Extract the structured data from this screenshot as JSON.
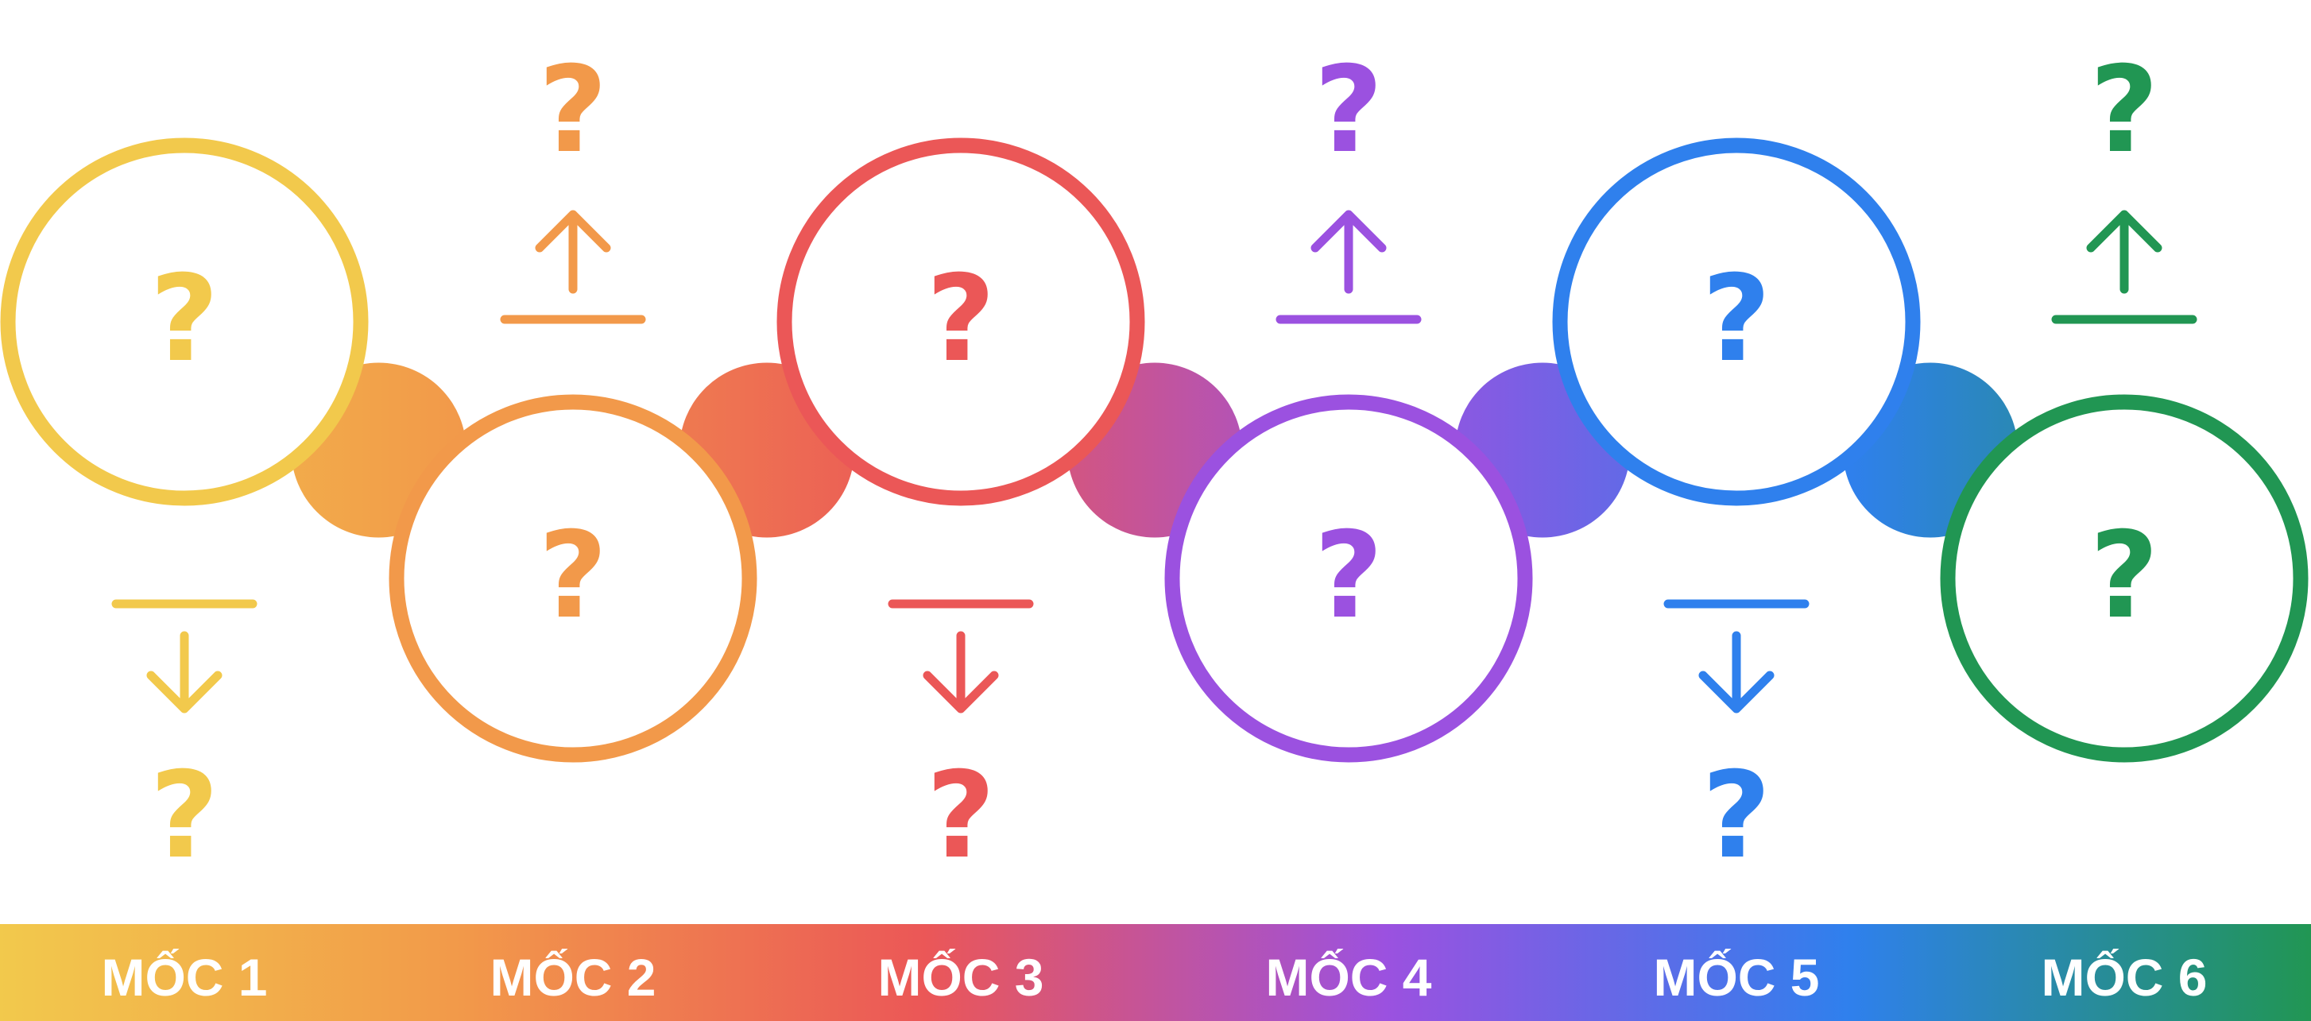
{
  "diagram": {
    "milestones": [
      {
        "label": "MỐC 1",
        "circle_text": "?",
        "note_text": "?",
        "color": "#F2C94C"
      },
      {
        "label": "MỐC 2",
        "circle_text": "?",
        "note_text": "?",
        "color": "#F2994A"
      },
      {
        "label": "MỐC 3",
        "circle_text": "?",
        "note_text": "?",
        "color": "#EB5757"
      },
      {
        "label": "MỐC 4",
        "circle_text": "?",
        "note_text": "?",
        "color": "#9B51E0"
      },
      {
        "label": "MỐC 5",
        "circle_text": "?",
        "note_text": "?",
        "color": "#2F80ED"
      },
      {
        "label": "MỐC 6",
        "circle_text": "?",
        "note_text": "?",
        "color": "#219653"
      }
    ],
    "bar_gradient": [
      "#F2C94C",
      "#F2994A",
      "#EB5757",
      "#9B51E0",
      "#2F80ED",
      "#219653"
    ]
  }
}
